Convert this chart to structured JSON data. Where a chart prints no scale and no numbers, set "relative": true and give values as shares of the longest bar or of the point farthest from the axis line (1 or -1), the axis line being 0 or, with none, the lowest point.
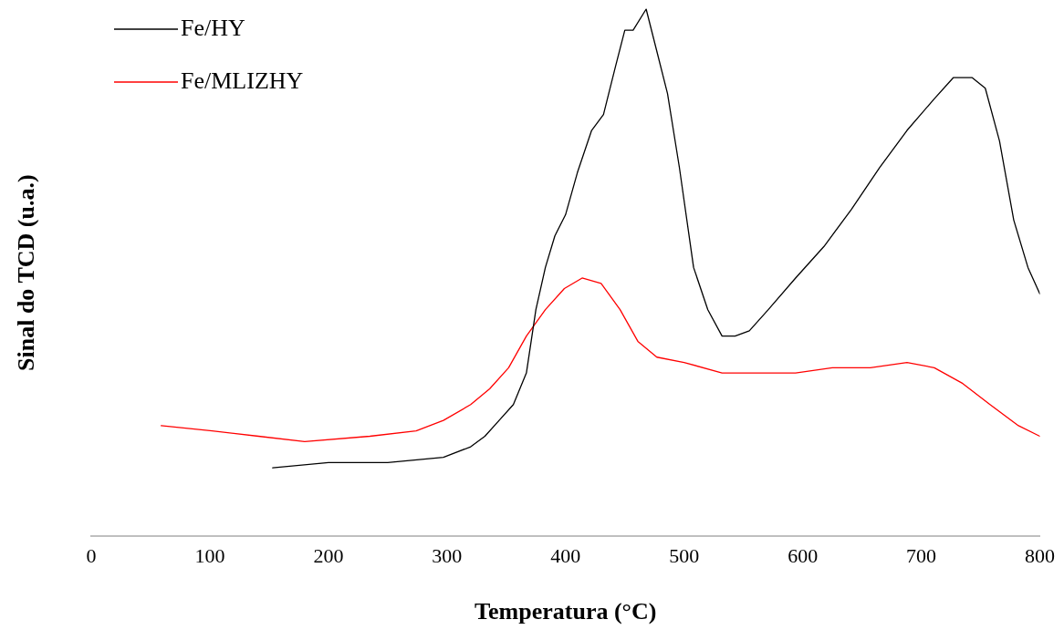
{
  "chart_data": {
    "type": "line",
    "xlabel": "Temperatura (°C)",
    "ylabel": "Sinal do TCD (u.a.)",
    "relative": true,
    "xlim": [
      0,
      800
    ],
    "xticks": [
      0,
      100,
      200,
      300,
      400,
      500,
      600,
      700,
      800
    ],
    "grid": false,
    "legend": "top left",
    "marker": "none",
    "line_style": "solid",
    "series": [
      {
        "name": "Fe/HY",
        "color": "#000000",
        "x": [
          153,
          200,
          250,
          297,
          320,
          332,
          344,
          356,
          367,
          375,
          383,
          391,
          400,
          410,
          422,
          432,
          442,
          450,
          457,
          468,
          477,
          486,
          496,
          508,
          520,
          532,
          543,
          555,
          571,
          594,
          618,
          641,
          665,
          688,
          711,
          727,
          743,
          754,
          766,
          778,
          790,
          800
        ],
        "values": [
          0.13,
          0.14,
          0.14,
          0.15,
          0.17,
          0.19,
          0.22,
          0.25,
          0.31,
          0.43,
          0.51,
          0.57,
          0.61,
          0.69,
          0.77,
          0.8,
          0.89,
          0.96,
          0.96,
          1,
          0.92,
          0.84,
          0.7,
          0.51,
          0.43,
          0.38,
          0.38,
          0.39,
          0.43,
          0.49,
          0.55,
          0.62,
          0.7,
          0.77,
          0.83,
          0.87,
          0.87,
          0.85,
          0.75,
          0.6,
          0.51,
          0.46
        ]
      },
      {
        "name": "Fe/MLIZHY",
        "color": "#ff0000",
        "x": [
          59,
          102,
          141,
          180,
          235,
          274,
          297,
          320,
          336,
          352,
          367,
          383,
          399,
          414,
          430,
          446,
          461,
          477,
          500,
          532,
          563,
          594,
          625,
          657,
          688,
          711,
          735,
          758,
          782,
          800
        ],
        "values": [
          0.21,
          0.2,
          0.19,
          0.18,
          0.19,
          0.2,
          0.22,
          0.25,
          0.28,
          0.32,
          0.38,
          0.43,
          0.47,
          0.49,
          0.48,
          0.43,
          0.37,
          0.34,
          0.33,
          0.31,
          0.31,
          0.31,
          0.32,
          0.32,
          0.33,
          0.32,
          0.29,
          0.25,
          0.21,
          0.19
        ]
      }
    ]
  }
}
